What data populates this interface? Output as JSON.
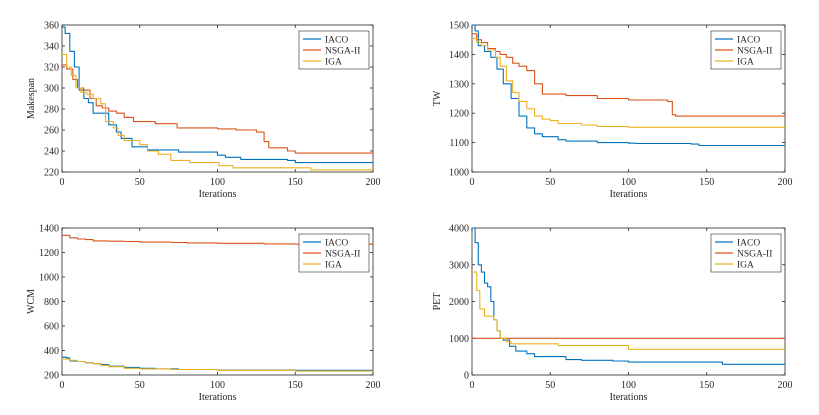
{
  "chart_data": [
    {
      "type": "line",
      "title": "",
      "xlabel": "Iterations",
      "ylabel": "Makespan",
      "xlim": [
        0,
        200
      ],
      "ylim": [
        220,
        360
      ],
      "xticks": [
        "0",
        "50",
        "100",
        "150",
        "200"
      ],
      "yticks": [
        "220",
        "240",
        "260",
        "280",
        "300",
        "320",
        "340",
        "360"
      ],
      "legend_position": "top-right",
      "grid": false,
      "series": [
        {
          "name": "IACO",
          "color": "#0072BD",
          "points": [
            [
              0,
              358
            ],
            [
              2,
              352
            ],
            [
              5,
              335
            ],
            [
              8,
              320
            ],
            [
              11,
              298
            ],
            [
              14,
              290
            ],
            [
              17,
              286
            ],
            [
              20,
              276
            ],
            [
              27,
              276
            ],
            [
              30,
              265
            ],
            [
              35,
              258
            ],
            [
              38,
              252
            ],
            [
              45,
              244
            ],
            [
              55,
              241
            ],
            [
              75,
              239
            ],
            [
              100,
              236
            ],
            [
              105,
              234
            ],
            [
              115,
              232
            ],
            [
              145,
              231
            ],
            [
              150,
              229
            ],
            [
              200,
              229
            ]
          ]
        },
        {
          "name": "NSGA-II",
          "color": "#D95319",
          "points": [
            [
              0,
              322
            ],
            [
              3,
              318
            ],
            [
              7,
              308
            ],
            [
              10,
              300
            ],
            [
              14,
              298
            ],
            [
              18,
              290
            ],
            [
              22,
              283
            ],
            [
              26,
              281
            ],
            [
              30,
              278
            ],
            [
              35,
              276
            ],
            [
              40,
              272
            ],
            [
              46,
              268
            ],
            [
              60,
              266
            ],
            [
              74,
              262
            ],
            [
              100,
              261
            ],
            [
              112,
              260
            ],
            [
              125,
              258
            ],
            [
              130,
              249
            ],
            [
              133,
              243
            ],
            [
              145,
              240
            ],
            [
              150,
              238
            ],
            [
              200,
              238
            ]
          ]
        },
        {
          "name": "IGA",
          "color": "#EDB120",
          "points": [
            [
              0,
              332
            ],
            [
              3,
              320
            ],
            [
              6,
              312
            ],
            [
              9,
              300
            ],
            [
              12,
              296
            ],
            [
              16,
              294
            ],
            [
              20,
              290
            ],
            [
              25,
              285
            ],
            [
              28,
              268
            ],
            [
              33,
              262
            ],
            [
              36,
              255
            ],
            [
              40,
              250
            ],
            [
              50,
              246
            ],
            [
              55,
              240
            ],
            [
              62,
              237
            ],
            [
              70,
              231
            ],
            [
              79,
              231
            ],
            [
              82,
              229
            ],
            [
              100,
              229
            ],
            [
              101,
              226
            ],
            [
              110,
              224
            ],
            [
              150,
              224
            ],
            [
              160,
              222
            ],
            [
              200,
              222
            ]
          ]
        }
      ]
    },
    {
      "type": "line",
      "title": "",
      "xlabel": "Iterations",
      "ylabel": "TW",
      "xlim": [
        0,
        200
      ],
      "ylim": [
        1000,
        1500
      ],
      "xticks": [
        "0",
        "50",
        "100",
        "150",
        "200"
      ],
      "yticks": [
        "1000",
        "1100",
        "1200",
        "1300",
        "1400",
        "1500"
      ],
      "legend_position": "top-right",
      "grid": false,
      "series": [
        {
          "name": "IACO",
          "color": "#0072BD",
          "points": [
            [
              0,
              1500
            ],
            [
              2,
              1480
            ],
            [
              4,
              1430
            ],
            [
              8,
              1410
            ],
            [
              12,
              1390
            ],
            [
              16,
              1350
            ],
            [
              20,
              1300
            ],
            [
              25,
              1250
            ],
            [
              30,
              1190
            ],
            [
              35,
              1150
            ],
            [
              40,
              1130
            ],
            [
              45,
              1120
            ],
            [
              55,
              1110
            ],
            [
              60,
              1105
            ],
            [
              75,
              1105
            ],
            [
              80,
              1100
            ],
            [
              100,
              1098
            ],
            [
              105,
              1097
            ],
            [
              140,
              1095
            ],
            [
              145,
              1090
            ],
            [
              200,
              1090
            ]
          ]
        },
        {
          "name": "NSGA-II",
          "color": "#D95319",
          "points": [
            [
              0,
              1470
            ],
            [
              3,
              1450
            ],
            [
              6,
              1440
            ],
            [
              10,
              1420
            ],
            [
              15,
              1410
            ],
            [
              18,
              1400
            ],
            [
              22,
              1390
            ],
            [
              26,
              1370
            ],
            [
              30,
              1360
            ],
            [
              35,
              1345
            ],
            [
              40,
              1300
            ],
            [
              44,
              1300
            ],
            [
              45,
              1265
            ],
            [
              60,
              1260
            ],
            [
              80,
              1250
            ],
            [
              100,
              1245
            ],
            [
              125,
              1240
            ],
            [
              128,
              1195
            ],
            [
              130,
              1190
            ],
            [
              200,
              1188
            ]
          ]
        },
        {
          "name": "IGA",
          "color": "#EDB120",
          "points": [
            [
              0,
              1455
            ],
            [
              3,
              1440
            ],
            [
              6,
              1430
            ],
            [
              10,
              1415
            ],
            [
              15,
              1390
            ],
            [
              18,
              1360
            ],
            [
              22,
              1310
            ],
            [
              26,
              1270
            ],
            [
              30,
              1240
            ],
            [
              35,
              1215
            ],
            [
              40,
              1190
            ],
            [
              45,
              1180
            ],
            [
              50,
              1175
            ],
            [
              55,
              1165
            ],
            [
              70,
              1160
            ],
            [
              80,
              1155
            ],
            [
              100,
              1152
            ],
            [
              200,
              1152
            ]
          ]
        }
      ]
    },
    {
      "type": "line",
      "title": "",
      "xlabel": "Iterations",
      "ylabel": "WCM",
      "xlim": [
        0,
        200
      ],
      "ylim": [
        200,
        1400
      ],
      "xticks": [
        "0",
        "50",
        "100",
        "150",
        "200"
      ],
      "yticks": [
        "200",
        "400",
        "600",
        "800",
        "1000",
        "1200",
        "1400"
      ],
      "legend_position": "top-right",
      "grid": false,
      "series": [
        {
          "name": "IACO",
          "color": "#0072BD",
          "points": [
            [
              0,
              345
            ],
            [
              3,
              340
            ],
            [
              5,
              315
            ],
            [
              10,
              310
            ],
            [
              15,
              300
            ],
            [
              20,
              292
            ],
            [
              25,
              285
            ],
            [
              30,
              272
            ],
            [
              40,
              262
            ],
            [
              50,
              255
            ],
            [
              60,
              250
            ],
            [
              75,
              245
            ],
            [
              100,
              240
            ],
            [
              150,
              238
            ],
            [
              200,
              238
            ]
          ]
        },
        {
          "name": "NSGA-II",
          "color": "#D95319",
          "points": [
            [
              0,
              1340
            ],
            [
              5,
              1320
            ],
            [
              10,
              1310
            ],
            [
              15,
              1305
            ],
            [
              20,
              1295
            ],
            [
              30,
              1292
            ],
            [
              40,
              1290
            ],
            [
              50,
              1285
            ],
            [
              70,
              1282
            ],
            [
              80,
              1278
            ],
            [
              100,
              1275
            ],
            [
              130,
              1270
            ],
            [
              150,
              1268
            ],
            [
              200,
              1267
            ]
          ]
        },
        {
          "name": "IGA",
          "color": "#EDB120",
          "points": [
            [
              0,
              330
            ],
            [
              5,
              320
            ],
            [
              10,
              310
            ],
            [
              15,
              300
            ],
            [
              20,
              292
            ],
            [
              25,
              278
            ],
            [
              30,
              268
            ],
            [
              40,
              255
            ],
            [
              50,
              250
            ],
            [
              70,
              245
            ],
            [
              100,
              238
            ],
            [
              150,
              232
            ],
            [
              200,
              230
            ]
          ]
        }
      ]
    },
    {
      "type": "line",
      "title": "",
      "xlabel": "Iterations",
      "ylabel": "PET",
      "xlim": [
        0,
        200
      ],
      "ylim": [
        0,
        4000
      ],
      "xticks": [
        "0",
        "50",
        "100",
        "150",
        "200"
      ],
      "yticks": [
        "0",
        "1000",
        "2000",
        "3000",
        "4000"
      ],
      "legend_position": "top-right",
      "grid": false,
      "series": [
        {
          "name": "IACO",
          "color": "#0072BD",
          "points": [
            [
              0,
              4000
            ],
            [
              2,
              3600
            ],
            [
              4,
              3000
            ],
            [
              6,
              2800
            ],
            [
              8,
              2500
            ],
            [
              10,
              2400
            ],
            [
              12,
              2000
            ],
            [
              14,
              1500
            ],
            [
              16,
              1200
            ],
            [
              18,
              1000
            ],
            [
              20,
              950
            ],
            [
              24,
              780
            ],
            [
              28,
              650
            ],
            [
              35,
              580
            ],
            [
              40,
              500
            ],
            [
              55,
              500
            ],
            [
              60,
              420
            ],
            [
              70,
              400
            ],
            [
              90,
              380
            ],
            [
              100,
              350
            ],
            [
              155,
              350
            ],
            [
              160,
              290
            ],
            [
              200,
              290
            ]
          ]
        },
        {
          "name": "NSGA-II",
          "color": "#D95319",
          "points": [
            [
              0,
              1000
            ],
            [
              200,
              1000
            ]
          ]
        },
        {
          "name": "IGA",
          "color": "#EDB120",
          "points": [
            [
              0,
              2800
            ],
            [
              3,
              2300
            ],
            [
              5,
              1800
            ],
            [
              8,
              1600
            ],
            [
              12,
              1600
            ],
            [
              14,
              1500
            ],
            [
              16,
              1200
            ],
            [
              18,
              1000
            ],
            [
              22,
              900
            ],
            [
              25,
              850
            ],
            [
              50,
              850
            ],
            [
              55,
              800
            ],
            [
              95,
              800
            ],
            [
              100,
              700
            ],
            [
              200,
              700
            ]
          ]
        }
      ]
    }
  ]
}
